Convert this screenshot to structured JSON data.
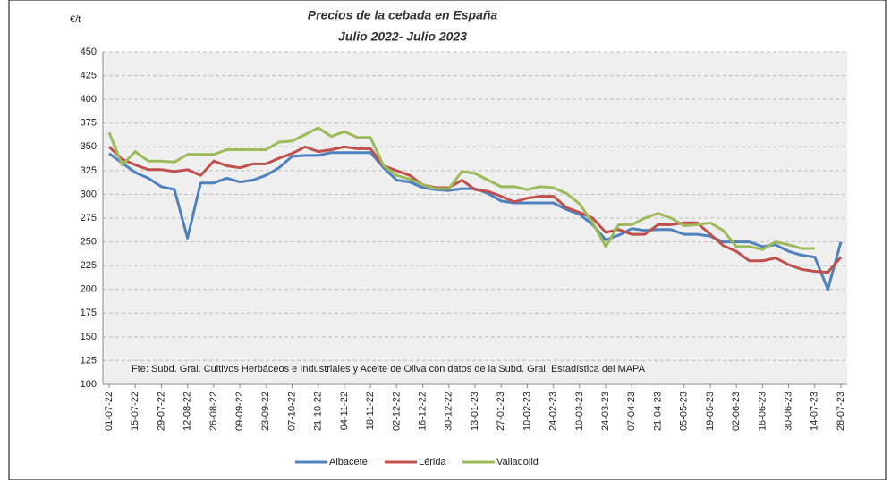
{
  "chart_data": {
    "type": "line",
    "title": "Precios de la cebada en España",
    "subtitle": "Julio 2022- Julio 2023",
    "y_label": "€/t",
    "annotation": "Fte: Subd. Gral. Cultivos Herbáceos e Industriales y Aceite de Oliva con datos de la Subd. Gral. Estadística del MAPA",
    "categories": [
      "01-07-22",
      null,
      "15-07-22",
      null,
      "29-07-22",
      null,
      "12-08-22",
      null,
      "26-08-22",
      null,
      "09-09-22",
      null,
      "23-09-22",
      null,
      "07-10-22",
      null,
      "21-10-22",
      null,
      "04-11-22",
      null,
      "18-11-22",
      null,
      "02-12-22",
      null,
      "16-12-22",
      null,
      "30-12-22",
      null,
      "13-01-23",
      null,
      "27-01-23",
      null,
      "10-02-23",
      null,
      "24-02-23",
      null,
      "10-03-23",
      null,
      "24-03-23",
      null,
      "07-04-23",
      null,
      "21-04-23",
      null,
      "05-05-23",
      null,
      "19-05-23",
      null,
      "02-06-23",
      null,
      "16-06-23",
      null,
      "30-06-23",
      null,
      "14-07-23",
      null,
      "28-07-23"
    ],
    "series": [
      {
        "name": "Albacete",
        "color": "#4f81bd",
        "values": [
          343,
          333,
          323,
          317,
          308,
          305,
          254,
          312,
          312,
          317,
          313,
          315,
          320,
          328,
          340,
          341,
          341,
          344,
          344,
          344,
          344,
          328,
          315,
          313,
          307,
          305,
          304,
          306,
          306,
          301,
          293,
          291,
          291,
          291,
          291,
          284,
          279,
          268,
          252,
          257,
          264,
          262,
          263,
          263,
          258,
          258,
          256,
          250,
          250,
          250,
          245,
          247,
          240,
          236,
          234,
          200,
          250
        ]
      },
      {
        "name": "Lérida",
        "color": "#c0504d",
        "values": [
          350,
          337,
          331,
          326,
          326,
          324,
          326,
          320,
          335,
          330,
          328,
          332,
          332,
          338,
          343,
          350,
          345,
          347,
          350,
          348,
          348,
          330,
          325,
          320,
          310,
          307,
          307,
          315,
          305,
          303,
          298,
          292,
          296,
          298,
          298,
          286,
          281,
          275,
          260,
          263,
          258,
          258,
          268,
          268,
          270,
          270,
          258,
          246,
          240,
          230,
          230,
          233,
          226,
          221,
          219,
          218,
          234
        ]
      },
      {
        "name": "Valladolid",
        "color": "#9bbb59",
        "values": [
          365,
          331,
          345,
          335,
          335,
          334,
          342,
          342,
          342,
          347,
          347,
          347,
          347,
          355,
          356,
          363,
          370,
          361,
          366,
          360,
          360,
          330,
          320,
          316,
          310,
          306,
          306,
          324,
          322,
          315,
          308,
          308,
          305,
          308,
          307,
          301,
          290,
          270,
          245,
          268,
          268,
          275,
          280,
          275,
          267,
          268,
          270,
          262,
          245,
          245,
          242,
          250,
          247,
          243,
          243,
          null,
          null
        ]
      }
    ],
    "ylim": [
      100,
      450
    ],
    "yticks": [
      100,
      125,
      150,
      175,
      200,
      225,
      250,
      275,
      300,
      325,
      350,
      375,
      400,
      425,
      450
    ],
    "grid": true,
    "legend": "bottom"
  }
}
